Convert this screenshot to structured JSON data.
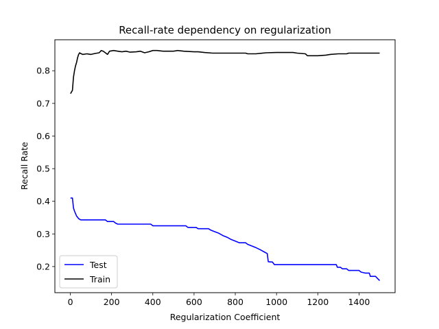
{
  "chart_data": {
    "type": "line",
    "title": "Recall-rate dependency on regularization",
    "xlabel": "Regularization Coefficient",
    "ylabel": "Recall Rate",
    "xlim": [
      -75,
      1575
    ],
    "ylim": [
      0.12,
      0.895
    ],
    "xticks": [
      0,
      200,
      400,
      600,
      800,
      1000,
      1200,
      1400
    ],
    "yticks": [
      0.2,
      0.3,
      0.4,
      0.5,
      0.6,
      0.7,
      0.8
    ],
    "grid": false,
    "legend_position": "lower-left",
    "series": [
      {
        "name": "Test",
        "color": "#0000ff",
        "points": [
          [
            1,
            0.41
          ],
          [
            10,
            0.41
          ],
          [
            15,
            0.38
          ],
          [
            20,
            0.37
          ],
          [
            30,
            0.355
          ],
          [
            40,
            0.347
          ],
          [
            50,
            0.343
          ],
          [
            100,
            0.343
          ],
          [
            150,
            0.343
          ],
          [
            170,
            0.343
          ],
          [
            180,
            0.338
          ],
          [
            210,
            0.338
          ],
          [
            220,
            0.333
          ],
          [
            230,
            0.33
          ],
          [
            300,
            0.33
          ],
          [
            350,
            0.33
          ],
          [
            390,
            0.33
          ],
          [
            400,
            0.325
          ],
          [
            450,
            0.325
          ],
          [
            500,
            0.325
          ],
          [
            560,
            0.325
          ],
          [
            570,
            0.32
          ],
          [
            610,
            0.32
          ],
          [
            620,
            0.316
          ],
          [
            670,
            0.316
          ],
          [
            680,
            0.312
          ],
          [
            700,
            0.307
          ],
          [
            720,
            0.302
          ],
          [
            740,
            0.295
          ],
          [
            760,
            0.29
          ],
          [
            780,
            0.283
          ],
          [
            800,
            0.278
          ],
          [
            820,
            0.273
          ],
          [
            850,
            0.273
          ],
          [
            860,
            0.268
          ],
          [
            880,
            0.263
          ],
          [
            900,
            0.258
          ],
          [
            920,
            0.252
          ],
          [
            940,
            0.245
          ],
          [
            955,
            0.24
          ],
          [
            960,
            0.215
          ],
          [
            970,
            0.214
          ],
          [
            980,
            0.214
          ],
          [
            990,
            0.206
          ],
          [
            1000,
            0.206
          ],
          [
            1100,
            0.206
          ],
          [
            1200,
            0.206
          ],
          [
            1290,
            0.206
          ],
          [
            1295,
            0.198
          ],
          [
            1310,
            0.198
          ],
          [
            1320,
            0.193
          ],
          [
            1340,
            0.193
          ],
          [
            1350,
            0.188
          ],
          [
            1400,
            0.188
          ],
          [
            1410,
            0.183
          ],
          [
            1430,
            0.18
          ],
          [
            1450,
            0.18
          ],
          [
            1455,
            0.17
          ],
          [
            1480,
            0.17
          ],
          [
            1500,
            0.157
          ]
        ]
      },
      {
        "name": "Train",
        "color": "#000000",
        "points": [
          [
            1,
            0.73
          ],
          [
            10,
            0.74
          ],
          [
            15,
            0.78
          ],
          [
            20,
            0.8
          ],
          [
            25,
            0.815
          ],
          [
            30,
            0.825
          ],
          [
            35,
            0.84
          ],
          [
            40,
            0.85
          ],
          [
            45,
            0.855
          ],
          [
            50,
            0.853
          ],
          [
            60,
            0.85
          ],
          [
            80,
            0.852
          ],
          [
            100,
            0.85
          ],
          [
            120,
            0.853
          ],
          [
            140,
            0.855
          ],
          [
            150,
            0.862
          ],
          [
            160,
            0.86
          ],
          [
            170,
            0.855
          ],
          [
            180,
            0.85
          ],
          [
            190,
            0.86
          ],
          [
            210,
            0.862
          ],
          [
            230,
            0.86
          ],
          [
            250,
            0.858
          ],
          [
            270,
            0.86
          ],
          [
            290,
            0.857
          ],
          [
            320,
            0.858
          ],
          [
            340,
            0.86
          ],
          [
            360,
            0.855
          ],
          [
            380,
            0.858
          ],
          [
            400,
            0.862
          ],
          [
            420,
            0.862
          ],
          [
            450,
            0.86
          ],
          [
            500,
            0.86
          ],
          [
            520,
            0.862
          ],
          [
            550,
            0.86
          ],
          [
            600,
            0.858
          ],
          [
            620,
            0.858
          ],
          [
            650,
            0.856
          ],
          [
            690,
            0.854
          ],
          [
            700,
            0.854
          ],
          [
            750,
            0.854
          ],
          [
            850,
            0.854
          ],
          [
            860,
            0.852
          ],
          [
            900,
            0.852
          ],
          [
            950,
            0.855
          ],
          [
            1000,
            0.856
          ],
          [
            1080,
            0.856
          ],
          [
            1100,
            0.854
          ],
          [
            1140,
            0.852
          ],
          [
            1150,
            0.846
          ],
          [
            1200,
            0.846
          ],
          [
            1240,
            0.848
          ],
          [
            1260,
            0.85
          ],
          [
            1300,
            0.852
          ],
          [
            1340,
            0.852
          ],
          [
            1350,
            0.854
          ],
          [
            1500,
            0.854
          ]
        ]
      }
    ]
  }
}
